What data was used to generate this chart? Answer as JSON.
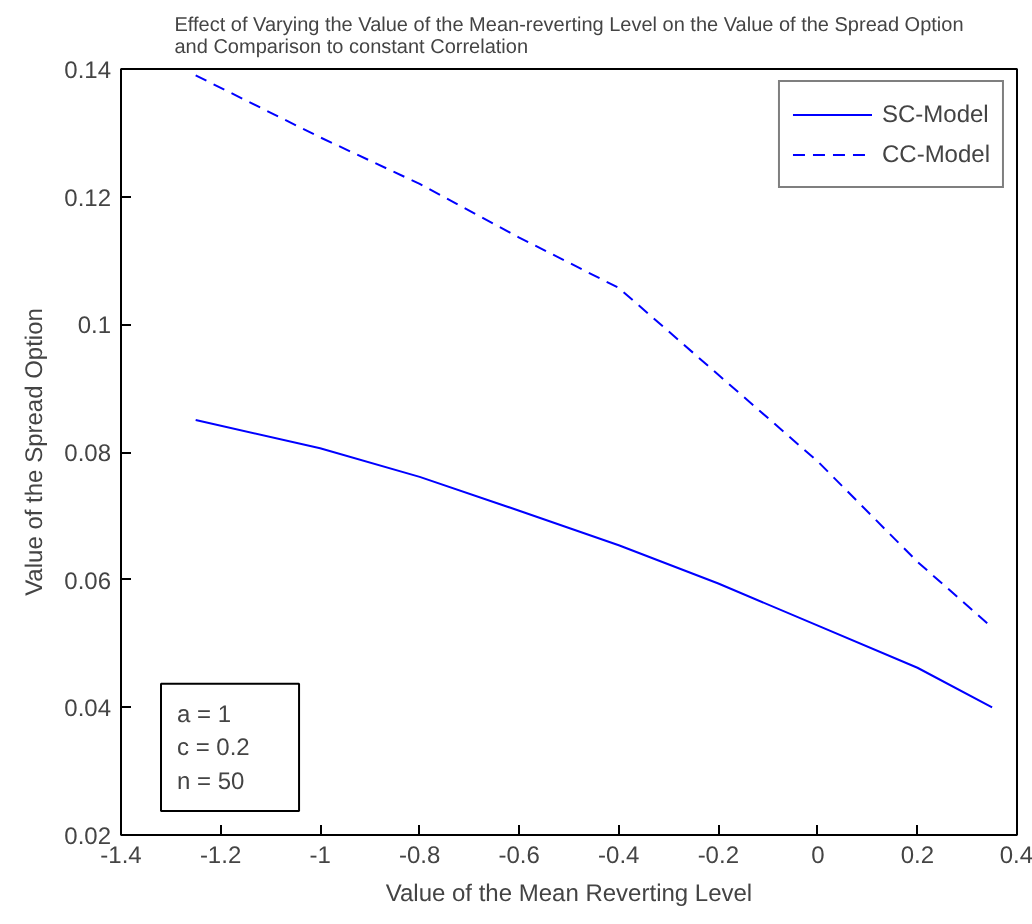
{
  "chart_data": {
    "type": "line",
    "title": "Effect of Varying the Value of the Mean-reverting Level on the Value of the Spread Option\nand Comparison to constant Correlation",
    "xlabel": "Value of the Mean Reverting Level",
    "ylabel": "Value of the Spread Option",
    "x": [
      -1.25,
      -1.0,
      -0.8,
      -0.6,
      -0.4,
      -0.2,
      0.0,
      0.2,
      0.35
    ],
    "series": [
      {
        "name": "SC-Model",
        "color": "#0000ff",
        "line_style": "solid",
        "values": [
          0.085,
          0.0806,
          0.0761,
          0.0708,
          0.0654,
          0.0594,
          0.0528,
          0.0462,
          0.04
        ]
      },
      {
        "name": "CC-Model",
        "color": "#0000ff",
        "line_style": "dashed",
        "values": [
          0.139,
          0.1293,
          0.122,
          0.1136,
          0.1057,
          0.0921,
          0.0785,
          0.0628,
          0.0525
        ]
      }
    ],
    "xlim": [
      -1.4,
      0.4
    ],
    "ylim": [
      0.02,
      0.14
    ],
    "xticks": [
      -1.4,
      -1.2,
      -1,
      -0.8,
      -0.6,
      -0.4,
      -0.2,
      0,
      0.2,
      0.4
    ],
    "yticks": [
      0.02,
      0.04,
      0.06,
      0.08,
      0.1,
      0.12,
      0.14
    ],
    "grid": false,
    "legend": "top right",
    "annotations": [
      "a      = 1",
      "c      = 0.2",
      "n      = 50"
    ]
  }
}
